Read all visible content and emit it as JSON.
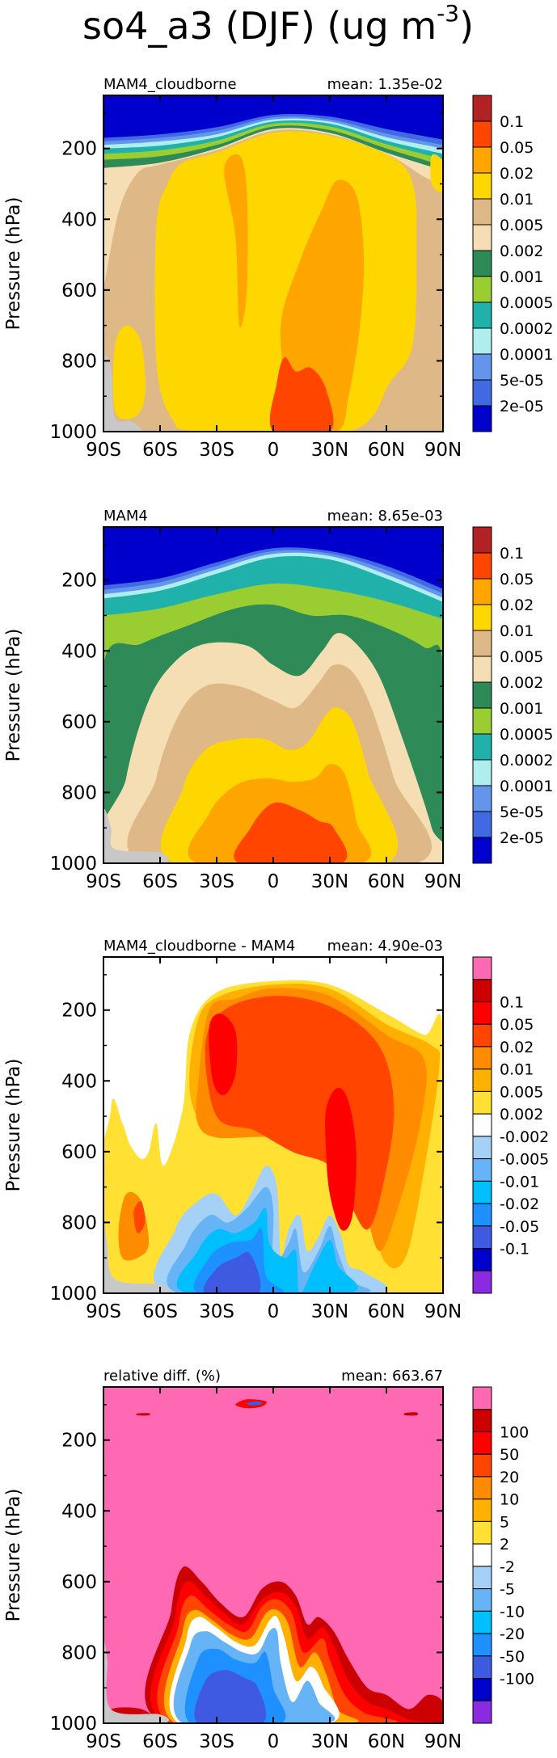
{
  "figure_title": "so4_a3 (DJF) (ug m",
  "figure_title_exponent": "-3",
  "figure_title_close": ")",
  "chart_data": [
    {
      "type": "heatmap",
      "title": "MAM4_cloudborne",
      "mean_label": "mean: 1.35e-02",
      "ylabel": "Pressure (hPa)",
      "xlabel": "",
      "xlim": [
        -90,
        90
      ],
      "ylim": [
        1000,
        50
      ],
      "x_ticks": [
        "90S",
        "60S",
        "30S",
        "0",
        "30N",
        "60N",
        "90N"
      ],
      "y_ticks": [
        "200",
        "400",
        "600",
        "800",
        "1000"
      ],
      "colorbar_labels": [
        "0.1",
        "0.05",
        "0.02",
        "0.01",
        "0.005",
        "0.002",
        "0.001",
        "0.0005",
        "0.0002",
        "0.0001",
        "5e-05",
        "2e-05"
      ],
      "colorbar_colors": [
        "#b22222",
        "#ff4500",
        "#ffa500",
        "#ffd700",
        "#deb887",
        "#f5deb3",
        "#2e8b57",
        "#9acd32",
        "#20b2aa",
        "#afeeee",
        "#6495ed",
        "#4169e1",
        "#0000cd"
      ]
    },
    {
      "type": "heatmap",
      "title": "MAM4",
      "mean_label": "mean: 8.65e-03",
      "ylabel": "Pressure (hPa)",
      "xlabel": "",
      "xlim": [
        -90,
        90
      ],
      "ylim": [
        1000,
        50
      ],
      "x_ticks": [
        "90S",
        "60S",
        "30S",
        "0",
        "30N",
        "60N",
        "90N"
      ],
      "y_ticks": [
        "200",
        "400",
        "600",
        "800",
        "1000"
      ],
      "colorbar_labels": [
        "0.1",
        "0.05",
        "0.02",
        "0.01",
        "0.005",
        "0.002",
        "0.001",
        "0.0005",
        "0.0002",
        "0.0001",
        "5e-05",
        "2e-05"
      ],
      "colorbar_colors": [
        "#b22222",
        "#ff4500",
        "#ffa500",
        "#ffd700",
        "#deb887",
        "#f5deb3",
        "#2e8b57",
        "#9acd32",
        "#20b2aa",
        "#afeeee",
        "#6495ed",
        "#4169e1",
        "#0000cd"
      ]
    },
    {
      "type": "heatmap",
      "title": "MAM4_cloudborne - MAM4",
      "mean_label": "mean: 4.90e-03",
      "ylabel": "Pressure (hPa)",
      "xlabel": "",
      "xlim": [
        -90,
        90
      ],
      "ylim": [
        1000,
        50
      ],
      "x_ticks": [
        "90S",
        "60S",
        "30S",
        "0",
        "30N",
        "60N",
        "90N"
      ],
      "y_ticks": [
        "200",
        "400",
        "600",
        "800",
        "1000"
      ],
      "colorbar_labels": [
        "0.1",
        "0.05",
        "0.02",
        "0.01",
        "0.005",
        "0.002",
        "-0.002",
        "-0.005",
        "-0.01",
        "-0.02",
        "-0.05",
        "-0.1"
      ],
      "colorbar_colors": [
        "#ff69b4",
        "#cc0000",
        "#ff0000",
        "#ff4500",
        "#ff8c00",
        "#ffb000",
        "#ffe033",
        "#ffffff",
        "#a6d1f7",
        "#66b3f5",
        "#00bfff",
        "#1e90ff",
        "#3d5ae0",
        "#0000cd",
        "#8a2be2"
      ]
    },
    {
      "type": "heatmap",
      "title": "relative diff. (%)",
      "mean_label": "mean: 663.67",
      "ylabel": "Pressure (hPa)",
      "xlabel": "",
      "xlim": [
        -90,
        90
      ],
      "ylim": [
        1000,
        50
      ],
      "x_ticks": [
        "90S",
        "60S",
        "30S",
        "0",
        "30N",
        "60N",
        "90N"
      ],
      "y_ticks": [
        "200",
        "400",
        "600",
        "800",
        "1000"
      ],
      "colorbar_labels": [
        "100",
        "50",
        "20",
        "10",
        "5",
        "2",
        "-2",
        "-5",
        "-10",
        "-20",
        "-50",
        "-100"
      ],
      "colorbar_colors": [
        "#ff69b4",
        "#cc0000",
        "#ff0000",
        "#ff4500",
        "#ff8c00",
        "#ffb000",
        "#ffe033",
        "#ffffff",
        "#a6d1f7",
        "#66b3f5",
        "#00bfff",
        "#1e90ff",
        "#3d5ae0",
        "#0000cd",
        "#8a2be2"
      ]
    }
  ]
}
